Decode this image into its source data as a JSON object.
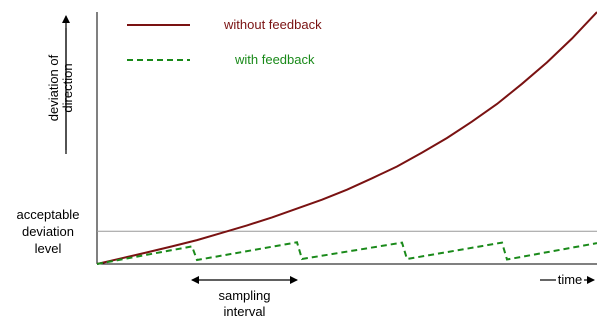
{
  "chart_data": {
    "type": "line",
    "title": "",
    "xlabel": "time",
    "ylabel": [
      "deviation of",
      "direction"
    ],
    "xlim": [
      0,
      100
    ],
    "ylim": [
      0,
      100
    ],
    "grid": false,
    "legend_position": "top-left",
    "threshold": {
      "value": 13,
      "label": [
        "acceptable",
        "deviation",
        "level"
      ],
      "color": "#999999"
    },
    "sampling_interval": {
      "from": 19,
      "to": 40,
      "label": [
        "sampling",
        "interval"
      ]
    },
    "series": [
      {
        "name": "without feedback",
        "color": "#7a1212",
        "style": "solid",
        "x": [
          0,
          5,
          10,
          15,
          20,
          25,
          30,
          35,
          40,
          45,
          50,
          55,
          60,
          65,
          70,
          75,
          80,
          85,
          90,
          95,
          100
        ],
        "y": [
          0,
          2.3,
          4.6,
          7.0,
          9.5,
          12.4,
          15.3,
          18.5,
          22.0,
          25.5,
          29.5,
          34.0,
          38.7,
          44.2,
          50.0,
          56.5,
          63.5,
          71.5,
          80.0,
          89.5,
          100
        ]
      },
      {
        "name": "with feedback",
        "color": "#1a8a1a",
        "style": "dashed",
        "x": [
          0,
          19,
          20,
          40,
          41,
          61,
          62,
          81,
          82,
          100
        ],
        "y": [
          0,
          7.0,
          1.6,
          8.6,
          2.0,
          8.5,
          2.0,
          8.5,
          1.8,
          8.3
        ]
      }
    ]
  }
}
